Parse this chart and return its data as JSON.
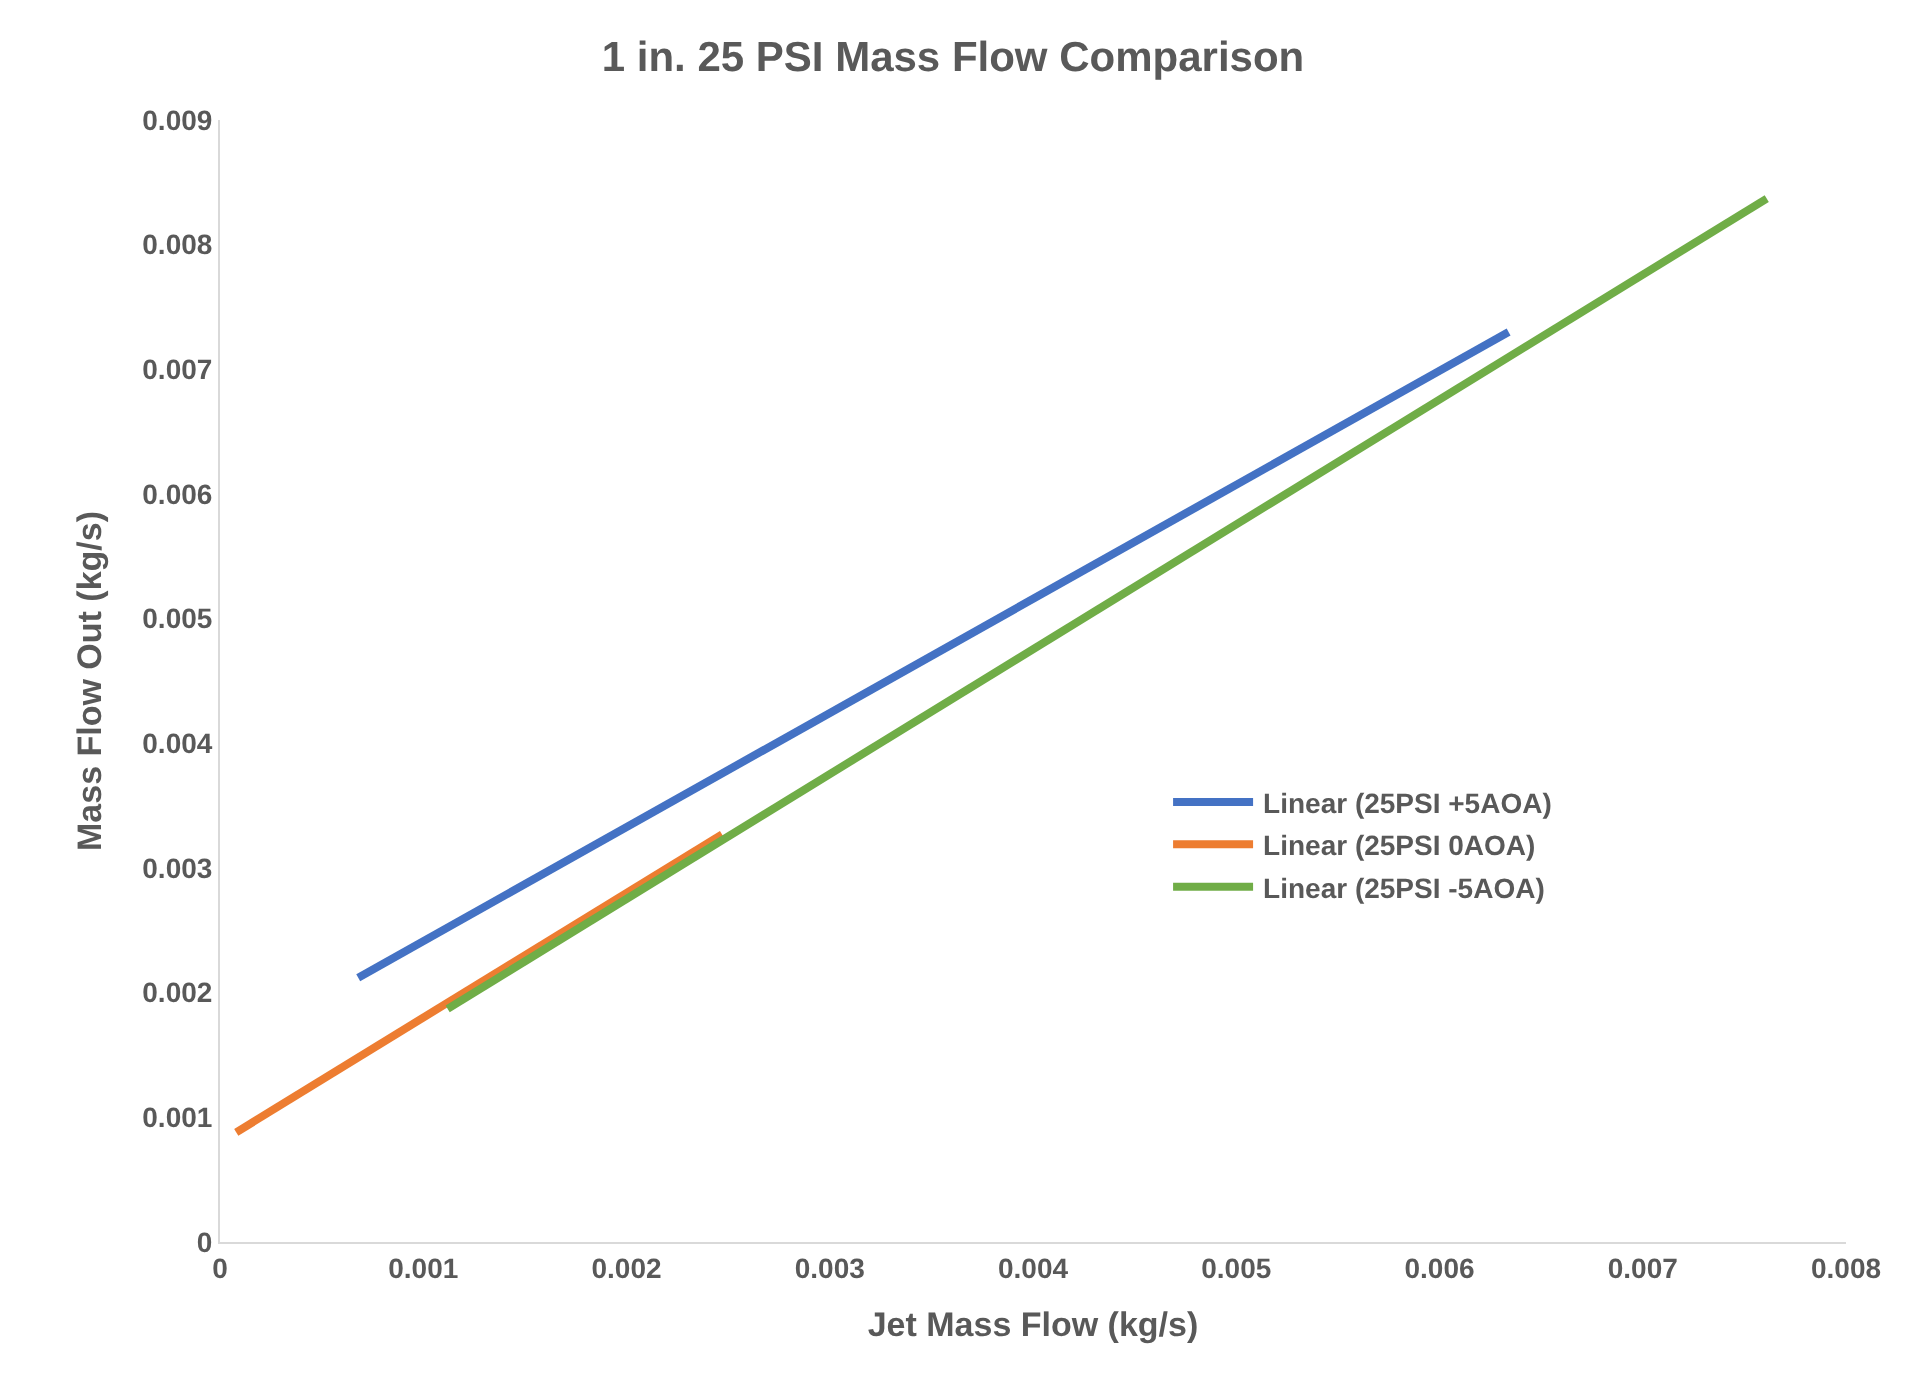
{
  "chart_data": {
    "type": "line",
    "title": "1 in. 25 PSI Mass Flow Comparison",
    "xlabel": "Jet Mass Flow (kg/s)",
    "ylabel": "Mass Flow Out (kg/s)",
    "series": [
      {
        "name": "Linear (25PSI +5AOA)",
        "color": "#4472c4",
        "x": [
          0.00068,
          0.00634
        ],
        "values": [
          0.00212,
          0.0073
        ]
      },
      {
        "name": "Linear (25PSI 0AOA)",
        "color": "#ed7d31",
        "x": [
          8e-05,
          0.00247
        ],
        "values": [
          0.00088,
          0.00327
        ]
      },
      {
        "name": "Linear (25PSI -5AOA)",
        "color": "#70ad47",
        "x": [
          0.00112,
          0.00761
        ],
        "values": [
          0.00187,
          0.00837
        ]
      }
    ],
    "xlim": [
      0,
      0.008
    ],
    "xticks": [
      0,
      0.001,
      0.002,
      0.003,
      0.004,
      0.005,
      0.006,
      0.007,
      0.008
    ],
    "ylim": [
      0,
      0.009
    ],
    "yticks": [
      0,
      0.001,
      0.002,
      0.003,
      0.004,
      0.005,
      0.006,
      0.007,
      0.008,
      0.009
    ],
    "legend": "right",
    "marker": "none",
    "line_style": "solid"
  }
}
